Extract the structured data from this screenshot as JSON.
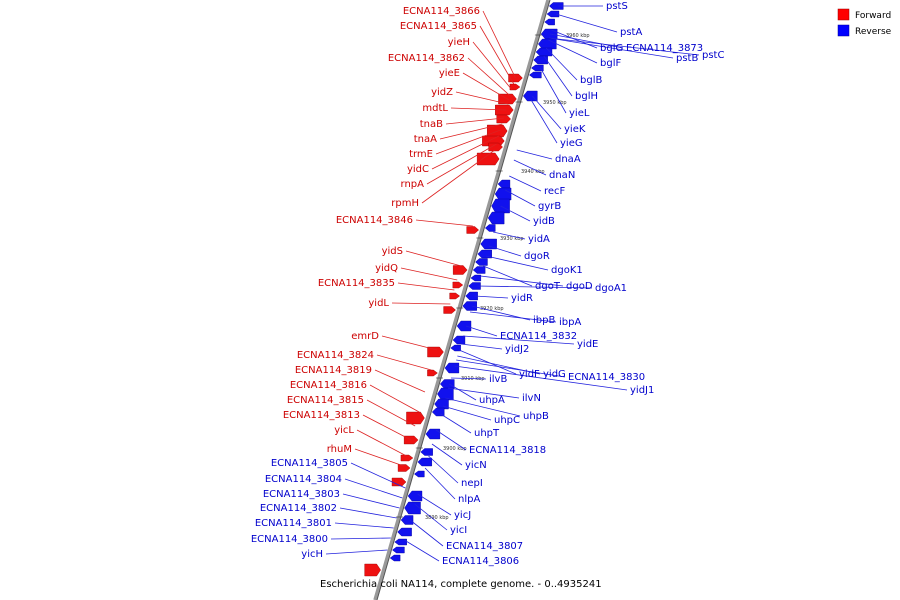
{
  "caption": "Escherichia coli NA114, complete genome. - 0..4935241",
  "legend": {
    "forward": {
      "label": "Forward",
      "color": "#ff0000"
    },
    "reverse": {
      "label": "Reverse",
      "color": "#0000ff"
    }
  },
  "colors": {
    "forward_text": "#cc0000",
    "reverse_text": "#0000cc",
    "backbone": "#888888"
  },
  "ticks": [
    "3960 kbp",
    "3950 kbp",
    "3940 kbp",
    "3930 kbp",
    "3920 kbp",
    "3910 kbp",
    "3900 kbp",
    "3890 kbp"
  ],
  "forward_genes": [
    "ECNA114_3866",
    "ECNA114_3865",
    "yieH",
    "ECNA114_3862",
    "yieE",
    "yidZ",
    "mdtL",
    "tnaB",
    "tnaA",
    "trmE",
    "yidC",
    "rnpA",
    "rpmH",
    "ECNA114_3846",
    "yidS",
    "yidQ",
    "ECNA114_3835",
    "yidL",
    "emrD",
    "ECNA114_3824",
    "ECNA114_3819",
    "ECNA114_3816",
    "ECNA114_3815",
    "ECNA114_3813",
    "yicL",
    "rhuM"
  ],
  "reverse_genes": [
    "ECNA114_3805",
    "ECNA114_3804",
    "ECNA114_3803",
    "ECNA114_3802",
    "ECNA114_3801",
    "ECNA114_3800",
    "yicH",
    "pstS",
    "pstA",
    "bglG",
    "ECNA114_3873",
    "pstB",
    "pstC",
    "bglF",
    "bglB",
    "bglH",
    "yieL",
    "yieK",
    "yieG",
    "dnaA",
    "dnaN",
    "recF",
    "gyrB",
    "yidB",
    "yidA",
    "dgoR",
    "dgoK1",
    "dgoT",
    "dgoD",
    "dgoA1",
    "yidR",
    "ibpB",
    "ibpA",
    "ECNA114_3832",
    "yidE",
    "yidJ2",
    "yidF",
    "yidG",
    "ECNA114_3830",
    "yidJ1",
    "ilvB",
    "uhpA",
    "ilvN",
    "uhpB",
    "uhpC",
    "uhpT",
    "ECNA114_3818",
    "yicN",
    "nepI",
    "nlpA",
    "yicJ",
    "yicI",
    "ECNA114_3807",
    "ECNA114_3806"
  ]
}
